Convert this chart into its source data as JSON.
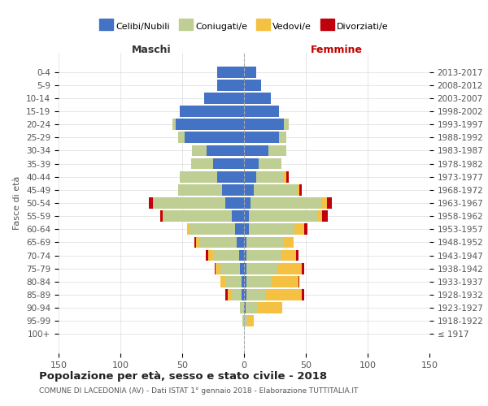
{
  "age_groups": [
    "100+",
    "95-99",
    "90-94",
    "85-89",
    "80-84",
    "75-79",
    "70-74",
    "65-69",
    "60-64",
    "55-59",
    "50-54",
    "45-49",
    "40-44",
    "35-39",
    "30-34",
    "25-29",
    "20-24",
    "15-19",
    "10-14",
    "5-9",
    "0-4"
  ],
  "birth_years": [
    "≤ 1917",
    "1918-1922",
    "1923-1927",
    "1928-1932",
    "1933-1937",
    "1938-1942",
    "1943-1947",
    "1948-1952",
    "1953-1957",
    "1958-1962",
    "1963-1967",
    "1968-1972",
    "1973-1977",
    "1978-1982",
    "1983-1987",
    "1988-1992",
    "1993-1997",
    "1998-2002",
    "2003-2007",
    "2008-2012",
    "2013-2017"
  ],
  "male": {
    "celibi": [
      0,
      0,
      0,
      2,
      2,
      3,
      4,
      6,
      7,
      10,
      15,
      18,
      22,
      25,
      30,
      48,
      55,
      52,
      32,
      22,
      22
    ],
    "coniugati": [
      0,
      1,
      3,
      8,
      13,
      16,
      21,
      30,
      37,
      55,
      58,
      35,
      30,
      18,
      12,
      5,
      3,
      0,
      0,
      0,
      0
    ],
    "vedovi": [
      0,
      0,
      0,
      3,
      4,
      4,
      4,
      3,
      2,
      1,
      1,
      0,
      0,
      0,
      0,
      0,
      0,
      0,
      0,
      0,
      0
    ],
    "divorziati": [
      0,
      0,
      0,
      2,
      0,
      1,
      2,
      1,
      0,
      2,
      3,
      0,
      0,
      0,
      0,
      0,
      0,
      0,
      0,
      0,
      0
    ]
  },
  "female": {
    "nubili": [
      0,
      0,
      1,
      2,
      2,
      2,
      2,
      2,
      4,
      4,
      5,
      8,
      10,
      12,
      20,
      28,
      32,
      28,
      22,
      14,
      10
    ],
    "coniugate": [
      0,
      3,
      10,
      15,
      20,
      25,
      28,
      30,
      37,
      55,
      58,
      35,
      22,
      18,
      14,
      6,
      4,
      0,
      0,
      0,
      0
    ],
    "vedove": [
      0,
      5,
      20,
      30,
      22,
      20,
      12,
      8,
      8,
      4,
      4,
      2,
      2,
      0,
      0,
      0,
      0,
      0,
      0,
      0,
      0
    ],
    "divorziate": [
      0,
      0,
      0,
      2,
      1,
      2,
      2,
      0,
      2,
      5,
      4,
      2,
      2,
      0,
      0,
      0,
      0,
      0,
      0,
      0,
      0
    ]
  },
  "colors": {
    "celibi": "#4472C4",
    "coniugati": "#BFCE93",
    "vedovi": "#F5C142",
    "divorziati": "#C0000C"
  },
  "title": "Popolazione per età, sesso e stato civile - 2018",
  "subtitle": "COMUNE DI LACEDONIA (AV) - Dati ISTAT 1° gennaio 2018 - Elaborazione TUTTITALIA.IT",
  "xlabel_left": "Maschi",
  "xlabel_right": "Femmine",
  "ylabel_left": "Fasce di età",
  "xlim": 150,
  "legend_labels": [
    "Celibi/Nubili",
    "Coniugati/e",
    "Vedovi/e",
    "Divorziati/e"
  ],
  "bg_color": "#FFFFFF",
  "grid_color": "#CCCCCC",
  "label_color": "#555555",
  "title_color": "#222222",
  "maschi_color": "#333333",
  "femmine_color": "#C00000"
}
